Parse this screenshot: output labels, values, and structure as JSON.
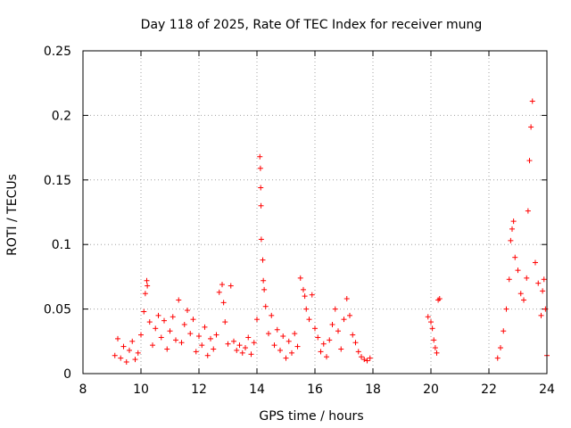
{
  "chart_data": {
    "type": "scatter",
    "title": "Day 118 of 2025, Rate Of TEC Index for receiver mung",
    "xlabel": "GPS time / hours",
    "ylabel": "ROTI / TECUs",
    "xlim": [
      8,
      24
    ],
    "ylim": [
      0,
      0.25
    ],
    "x_ticks": [
      8,
      10,
      12,
      14,
      16,
      18,
      20,
      22,
      24
    ],
    "x_tick_labels": [
      "8",
      "10",
      "12",
      "14",
      "16",
      "18",
      "20",
      "22",
      "24"
    ],
    "y_ticks": [
      0,
      0.05,
      0.1,
      0.15,
      0.2,
      0.25
    ],
    "y_tick_labels": [
      "0",
      "0.05",
      "0.1",
      "0.15",
      "0.2",
      "0.25"
    ],
    "grid": true,
    "marker": "plus",
    "color": "#ff0000",
    "series": [
      {
        "x": [
          9.1,
          9.2,
          9.3,
          9.4,
          9.5,
          9.6,
          9.7,
          9.8,
          9.9,
          10.0,
          10.1,
          10.15,
          10.2,
          10.22,
          10.3,
          10.4,
          10.5,
          10.6,
          10.7,
          10.8,
          10.9,
          11.0,
          11.1,
          11.2,
          11.3,
          11.4,
          11.5,
          11.6,
          11.7,
          11.8,
          11.9,
          12.0,
          12.1,
          12.2,
          12.3,
          12.4,
          12.5,
          12.6,
          12.7,
          12.8,
          12.85,
          12.9,
          13.0,
          13.1,
          13.2,
          13.3,
          13.4,
          13.5,
          13.6,
          13.7,
          13.8,
          13.9,
          14.0,
          14.1,
          14.12,
          14.13,
          14.14,
          14.15,
          14.2,
          14.22,
          14.25,
          14.3,
          14.4,
          14.5,
          14.6,
          14.7,
          14.8,
          14.9,
          15.0,
          15.1,
          15.2,
          15.3,
          15.4,
          15.5,
          15.6,
          15.65,
          15.7,
          15.8,
          15.9,
          16.0,
          16.1,
          16.2,
          16.3,
          16.4,
          16.5,
          16.6,
          16.7,
          16.8,
          16.9,
          17.0,
          17.1,
          17.2,
          17.3,
          17.4,
          17.5,
          17.6,
          17.7,
          17.8,
          17.9,
          19.9,
          20.0,
          20.05,
          20.1,
          20.15,
          20.2,
          20.25,
          20.3,
          22.3,
          22.4,
          22.5,
          22.6,
          22.7,
          22.75,
          22.8,
          22.85,
          22.9,
          23.0,
          23.1,
          23.2,
          23.3,
          23.35,
          23.4,
          23.45,
          23.5,
          23.6,
          23.7,
          23.8,
          23.85,
          23.9,
          23.95,
          24.0
        ],
        "y": [
          0.014,
          0.027,
          0.012,
          0.021,
          0.009,
          0.018,
          0.025,
          0.011,
          0.016,
          0.03,
          0.048,
          0.062,
          0.072,
          0.068,
          0.04,
          0.022,
          0.035,
          0.045,
          0.028,
          0.041,
          0.019,
          0.033,
          0.044,
          0.026,
          0.057,
          0.024,
          0.038,
          0.049,
          0.031,
          0.042,
          0.017,
          0.029,
          0.022,
          0.036,
          0.014,
          0.027,
          0.019,
          0.03,
          0.063,
          0.069,
          0.055,
          0.04,
          0.023,
          0.068,
          0.025,
          0.018,
          0.022,
          0.016,
          0.02,
          0.028,
          0.015,
          0.024,
          0.042,
          0.168,
          0.159,
          0.144,
          0.13,
          0.104,
          0.088,
          0.072,
          0.065,
          0.052,
          0.031,
          0.045,
          0.022,
          0.034,
          0.018,
          0.029,
          0.012,
          0.025,
          0.016,
          0.031,
          0.021,
          0.074,
          0.065,
          0.06,
          0.05,
          0.042,
          0.061,
          0.035,
          0.028,
          0.017,
          0.023,
          0.013,
          0.026,
          0.038,
          0.05,
          0.033,
          0.019,
          0.042,
          0.058,
          0.045,
          0.03,
          0.024,
          0.017,
          0.013,
          0.011,
          0.01,
          0.012,
          0.044,
          0.04,
          0.035,
          0.026,
          0.02,
          0.016,
          0.057,
          0.058,
          0.012,
          0.02,
          0.033,
          0.05,
          0.073,
          0.103,
          0.112,
          0.118,
          0.09,
          0.08,
          0.062,
          0.057,
          0.074,
          0.126,
          0.165,
          0.191,
          0.211,
          0.086,
          0.07,
          0.045,
          0.064,
          0.073,
          0.05,
          0.014
        ]
      }
    ]
  }
}
